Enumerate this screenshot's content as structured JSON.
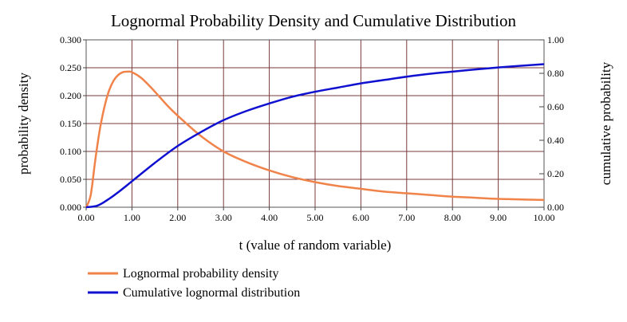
{
  "chart_data": {
    "type": "line",
    "title": "Lognormal Probability Density and Cumulative Distribution",
    "xlabel": "t (value of random variable)",
    "ylabel": "probability density",
    "y2label": "cumulative probability",
    "xlim": [
      0,
      10
    ],
    "ylim": [
      0,
      0.3
    ],
    "y2lim": [
      0,
      1
    ],
    "xticks": [
      "0.00",
      "1.00",
      "2.00",
      "3.00",
      "4.00",
      "5.00",
      "6.00",
      "7.00",
      "8.00",
      "9.00",
      "10.00"
    ],
    "yticks": [
      "0.000",
      "0.050",
      "0.100",
      "0.150",
      "0.200",
      "0.250",
      "0.300"
    ],
    "y2ticks": [
      "0.00",
      "0.20",
      "0.40",
      "0.60",
      "0.80",
      "1.00"
    ],
    "grid": true,
    "legend": "bottom-left",
    "series": [
      {
        "name": "Lognormal probability density",
        "axis": "left",
        "color": "#f0834a",
        "x": [
          0.0,
          0.1,
          0.2,
          0.3,
          0.4,
          0.5,
          0.6,
          0.7,
          0.8,
          0.9,
          1.0,
          1.2,
          1.4,
          1.6,
          1.8,
          2.0,
          2.5,
          3.0,
          3.5,
          4.0,
          4.5,
          5.0,
          5.5,
          6.0,
          6.5,
          7.0,
          7.5,
          8.0,
          8.5,
          9.0,
          9.5,
          10.0
        ],
        "y": [
          0.0,
          0.022,
          0.085,
          0.14,
          0.18,
          0.209,
          0.227,
          0.237,
          0.242,
          0.243,
          0.242,
          0.232,
          0.216,
          0.198,
          0.18,
          0.164,
          0.128,
          0.1,
          0.081,
          0.066,
          0.054,
          0.045,
          0.038,
          0.033,
          0.028,
          0.025,
          0.022,
          0.019,
          0.017,
          0.015,
          0.014,
          0.013
        ]
      },
      {
        "name": "Cumulative lognormal distribution",
        "axis": "right",
        "color": "#1010d0",
        "x": [
          0.0,
          0.25,
          0.5,
          0.75,
          1.0,
          1.5,
          2.0,
          2.5,
          3.0,
          3.5,
          4.0,
          4.5,
          5.0,
          5.5,
          6.0,
          6.5,
          7.0,
          7.5,
          8.0,
          8.5,
          9.0,
          9.5,
          10.0
        ],
        "y": [
          0.0,
          0.01,
          0.05,
          0.1,
          0.155,
          0.265,
          0.366,
          0.448,
          0.52,
          0.575,
          0.62,
          0.66,
          0.69,
          0.715,
          0.74,
          0.76,
          0.78,
          0.797,
          0.81,
          0.823,
          0.835,
          0.845,
          0.855
        ]
      }
    ]
  }
}
